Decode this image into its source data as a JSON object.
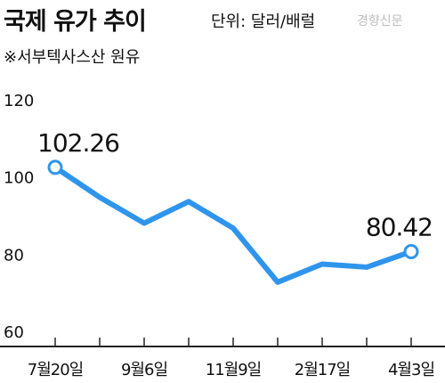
{
  "header": {
    "title": "국제 유가 추이",
    "unit": "단위: 달러/배럴",
    "source": "경향신문",
    "note": "※서부텍사스산 원유"
  },
  "colors": {
    "line": "#2f95ec",
    "axis": "#222222",
    "text": "#111111",
    "source": "#bdbdbd"
  },
  "chart_data": {
    "type": "line",
    "title": "국제 유가 추이",
    "ylabel": "",
    "xlabel": "",
    "ylim": [
      60,
      120
    ],
    "yticks": [
      60,
      80,
      100,
      120
    ],
    "grid": false,
    "legend": "none",
    "x_tick_labels": [
      "7월20일",
      "9월6일",
      "11월9일",
      "2월17일",
      "4월3일"
    ],
    "series": [
      {
        "values": [
          102.26,
          94.5,
          87.8,
          93.4,
          86.5,
          72.5,
          77.2,
          76.4,
          80.42
        ]
      }
    ],
    "annotations": [
      {
        "point_index": 0,
        "label": "102.26"
      },
      {
        "point_index": 8,
        "label": "80.42"
      }
    ]
  }
}
